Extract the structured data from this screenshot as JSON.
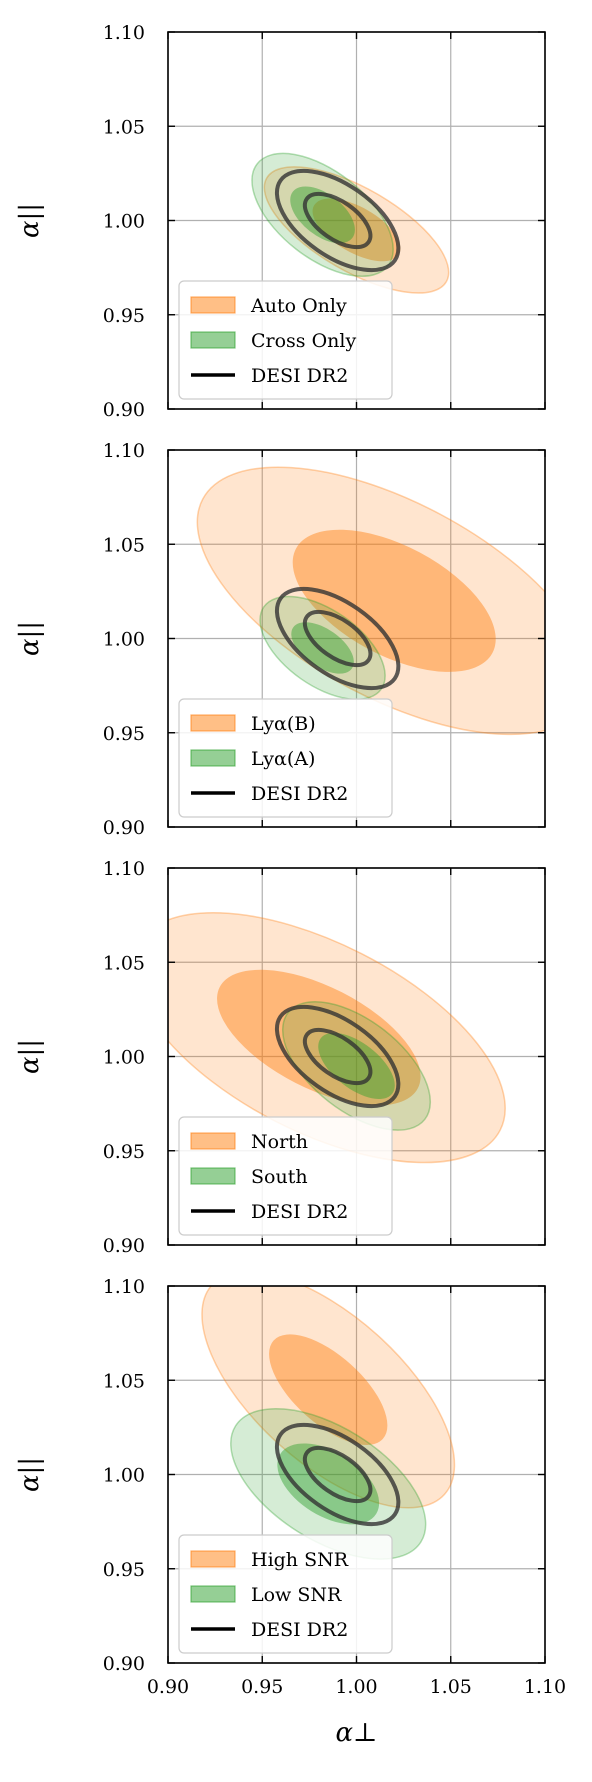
{
  "figure": {
    "xlabel": "α⊥",
    "ylabel": "α||",
    "xticks": [
      "0.90",
      "0.95",
      "1.00",
      "1.05",
      "1.10"
    ],
    "yticks": [
      "0.90",
      "0.95",
      "1.00",
      "1.05",
      "1.10"
    ],
    "xlim": [
      0.9,
      1.1
    ],
    "ylim": [
      0.9,
      1.1
    ],
    "grid": true,
    "colors": {
      "orange": "#ff7f0e",
      "green": "#2ca02c",
      "black": "#000000"
    }
  },
  "chart_data": [
    {
      "type": "contour",
      "legend": [
        "Auto Only",
        "Cross Only",
        "DESI DR2"
      ],
      "legend_position": "lower-left",
      "series": [
        {
          "name": "Auto Only",
          "color": "#ff7f0e",
          "center": [
            1.0,
            0.995
          ],
          "inner": {
            "rx": 0.026,
            "ry": 0.012,
            "angle": 30
          },
          "outer": {
            "rx": 0.055,
            "ry": 0.022,
            "angle": 30
          }
        },
        {
          "name": "Cross Only",
          "color": "#2ca02c",
          "center": [
            0.982,
            1.003
          ],
          "inner": {
            "rx": 0.02,
            "ry": 0.011,
            "angle": 38
          },
          "outer": {
            "rx": 0.044,
            "ry": 0.023,
            "angle": 38
          }
        },
        {
          "name": "DESI DR2",
          "color": "#000000",
          "center": [
            0.99,
            1.0
          ],
          "inner": {
            "rx": 0.02,
            "ry": 0.01,
            "angle": 35
          },
          "outer": {
            "rx": 0.037,
            "ry": 0.019,
            "angle": 35
          }
        }
      ]
    },
    {
      "type": "contour",
      "legend": [
        "Lyα(B)",
        "Lyα(A)",
        "DESI DR2"
      ],
      "legend_position": "lower-left",
      "series": [
        {
          "name": "Lyα(B)",
          "color": "#ff7f0e",
          "center": [
            1.02,
            1.02
          ],
          "inner": {
            "rx": 0.059,
            "ry": 0.029,
            "angle": 28
          },
          "outer": {
            "rx": 0.115,
            "ry": 0.052,
            "angle": 28
          }
        },
        {
          "name": "Lyα(A)",
          "color": "#2ca02c",
          "center": [
            0.982,
            0.995
          ],
          "inner": {
            "rx": 0.019,
            "ry": 0.01,
            "angle": 35
          },
          "outer": {
            "rx": 0.038,
            "ry": 0.02,
            "angle": 35
          }
        },
        {
          "name": "DESI DR2",
          "color": "#000000",
          "center": [
            0.99,
            1.0
          ],
          "inner": {
            "rx": 0.02,
            "ry": 0.01,
            "angle": 35
          },
          "outer": {
            "rx": 0.037,
            "ry": 0.019,
            "angle": 35
          }
        }
      ]
    },
    {
      "type": "contour",
      "legend": [
        "North",
        "South",
        "DESI DR2"
      ],
      "legend_position": "lower-left",
      "series": [
        {
          "name": "North",
          "color": "#ff7f0e",
          "center": [
            0.98,
            1.01
          ],
          "inner": {
            "rx": 0.059,
            "ry": 0.027,
            "angle": 27
          },
          "outer": {
            "rx": 0.108,
            "ry": 0.05,
            "angle": 27
          }
        },
        {
          "name": "South",
          "color": "#2ca02c",
          "center": [
            1.0,
            0.995
          ],
          "inner": {
            "rx": 0.024,
            "ry": 0.012,
            "angle": 38
          },
          "outer": {
            "rx": 0.046,
            "ry": 0.024,
            "angle": 38
          }
        },
        {
          "name": "DESI DR2",
          "color": "#000000",
          "center": [
            0.99,
            1.0
          ],
          "inner": {
            "rx": 0.02,
            "ry": 0.01,
            "angle": 35
          },
          "outer": {
            "rx": 0.037,
            "ry": 0.019,
            "angle": 35
          }
        }
      ]
    },
    {
      "type": "contour",
      "legend": [
        "High SNR",
        "Low SNR",
        "DESI DR2"
      ],
      "legend_position": "lower-left",
      "series": [
        {
          "name": "High SNR",
          "color": "#ff7f0e",
          "center": [
            0.985,
            1.045
          ],
          "inner": {
            "rx": 0.039,
            "ry": 0.018,
            "angle": 42
          },
          "outer": {
            "rx": 0.083,
            "ry": 0.039,
            "angle": 42
          }
        },
        {
          "name": "Low SNR",
          "color": "#2ca02c",
          "center": [
            0.985,
            0.995
          ],
          "inner": {
            "rx": 0.03,
            "ry": 0.017,
            "angle": 32
          },
          "outer": {
            "rx": 0.058,
            "ry": 0.03,
            "angle": 32
          }
        },
        {
          "name": "DESI DR2",
          "color": "#000000",
          "center": [
            0.99,
            1.0
          ],
          "inner": {
            "rx": 0.02,
            "ry": 0.01,
            "angle": 35
          },
          "outer": {
            "rx": 0.037,
            "ry": 0.019,
            "angle": 35
          }
        }
      ]
    }
  ]
}
